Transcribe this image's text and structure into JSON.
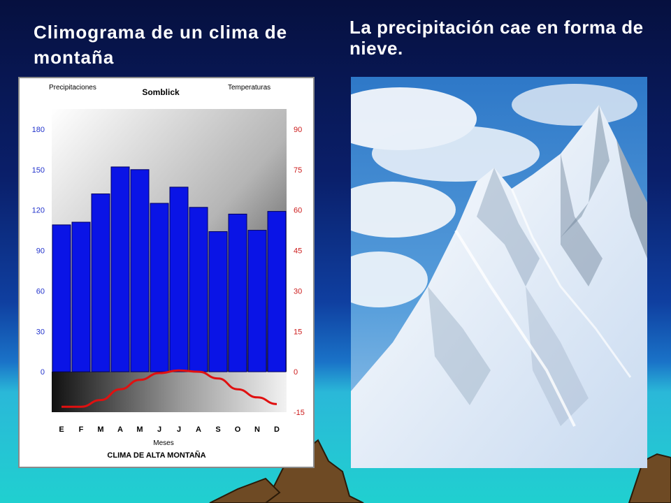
{
  "slide": {
    "title_left": "Climograma de un clima de montaña",
    "title_right": "La precipitación cae en forma de nieve."
  },
  "colors": {
    "bars": "#0a14e6",
    "temperature_line": "#e01010",
    "left_axis_labels": "#2233cc",
    "right_axis_labels": "#cc1a1a",
    "sky_top": "#06103f",
    "sea": "#20d0d0"
  },
  "chart_data": {
    "type": "bar",
    "title": "Somblick",
    "caption": "CLIMA DE ALTA MONTAÑA",
    "left_axis_title": "Precipitaciones",
    "right_axis_title": "Temperaturas",
    "xlabel": "Meses",
    "categories": [
      "E",
      "F",
      "M",
      "A",
      "M",
      "J",
      "J",
      "A",
      "S",
      "O",
      "N",
      "D"
    ],
    "series": [
      {
        "name": "Precipitaciones",
        "type": "bar",
        "axis": "left",
        "values": [
          109,
          111,
          132,
          152,
          150,
          125,
          137,
          122,
          104,
          117,
          105,
          119
        ]
      },
      {
        "name": "Temperaturas",
        "type": "line",
        "axis": "right",
        "values": [
          -13,
          -13,
          -10.5,
          -6.5,
          -3,
          -0.5,
          0.5,
          0,
          -2.5,
          -6.5,
          -9.5,
          -12
        ]
      }
    ],
    "ylim_left": [
      -30,
      195
    ],
    "yticks_left": [
      0,
      30,
      60,
      90,
      120,
      150,
      180
    ],
    "ylim_right": [
      -15,
      97.5
    ],
    "yticks_right": [
      -15,
      0,
      15,
      30,
      45,
      60,
      75,
      90
    ],
    "grid": false
  }
}
